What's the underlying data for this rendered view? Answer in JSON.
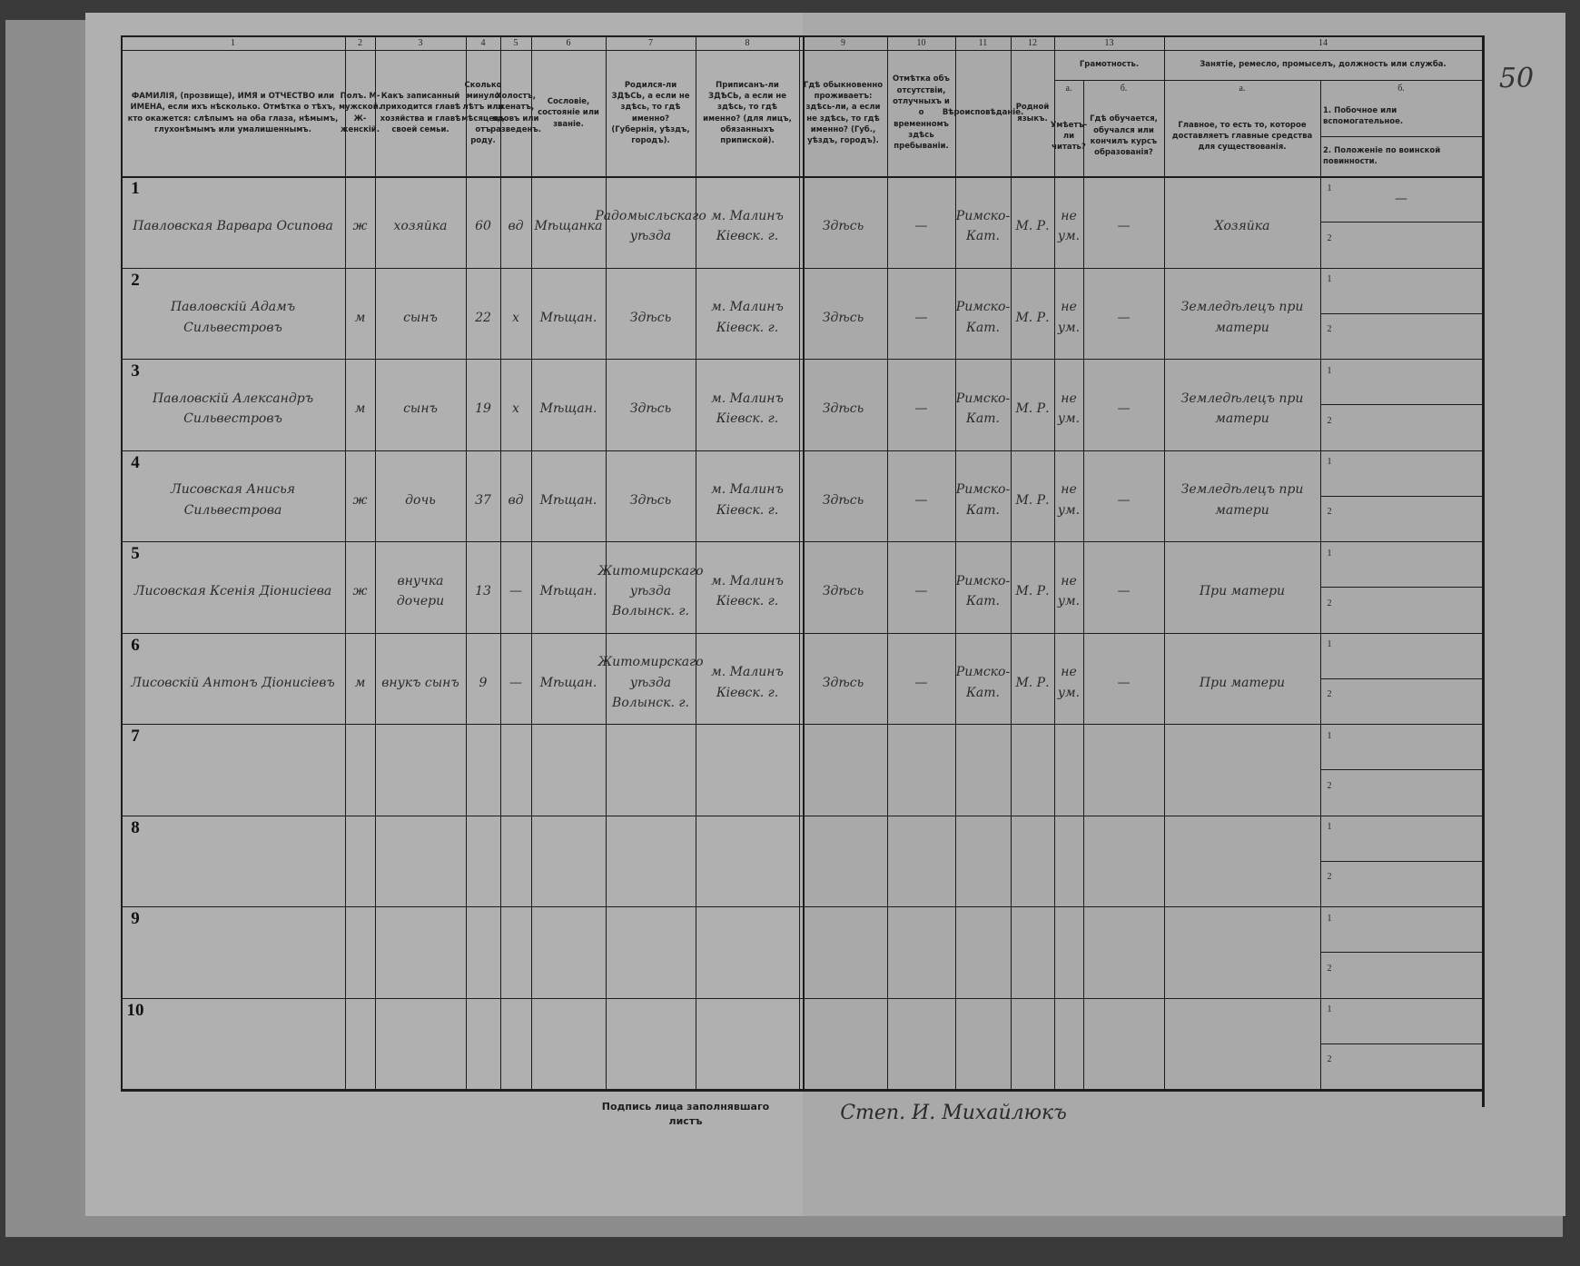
{
  "page_number": "50",
  "columns": [
    {
      "number": "1",
      "header": "ФАМИЛІЯ, (прозвище), ИМЯ и ОТЧЕСТВО или ИМЕНА, если ихъ нѣсколько. Отмѣтка о тѣхъ, кто окажется: слѣпымъ на оба глаза, нѣмымъ, глухонѣмымъ или умалишеннымъ."
    },
    {
      "number": "2",
      "header": "Полъ. М-мужской. Ж-женскій."
    },
    {
      "number": "3",
      "header": "Какъ записанный приходится главѣ хозяйства и главѣ своей семьи."
    },
    {
      "number": "4",
      "header": "Сколько минуло лѣтъ или мѣсяцевъ отъ роду."
    },
    {
      "number": "5",
      "header": "Холостъ, женатъ, вдовъ или разведенъ."
    },
    {
      "number": "6",
      "header": "Сословіе, состояніе или званіе."
    },
    {
      "number": "7",
      "header": "Родился-ли ЗДѢСЬ, а если не здѣсь, то гдѣ именно? (Губернія, уѣздъ, городъ)."
    },
    {
      "number": "8",
      "header": "Приписанъ-ли ЗДѢСЬ, а если не здѣсь, то гдѣ именно? (для лицъ, обязанныхъ припиской)."
    },
    {
      "number": "9",
      "header": "Гдѣ обыкновенно проживаетъ: здѣсь-ли, а если не здѣсь, то гдѣ именно? (Губ., уѣздъ, городъ)."
    },
    {
      "number": "10",
      "header": "Отмѣтка объ отсутствіи, отлучныхъ и о временномъ здѣсь пребываніи."
    },
    {
      "number": "11",
      "header": "Вѣроисповѣданіе."
    },
    {
      "number": "12",
      "header": "Родной языкъ."
    },
    {
      "number": "13",
      "header": "Грамотность.",
      "sub": [
        {
          "letter": "а.",
          "header": "Умѣетъ-ли читать?"
        },
        {
          "letter": "б.",
          "header": "Гдѣ обучается, обучался или кончилъ курсъ образованія?"
        }
      ]
    },
    {
      "number": "14",
      "header": "Занятіе, ремесло, промыселъ, должность или служба.",
      "sub": [
        {
          "letter": "а.",
          "header": "Главное, то есть то, которое доставляетъ главные средства для существованія."
        },
        {
          "letter": "б.",
          "header_lines": [
            "1. Побочное или вспомогательное.",
            "2. Положеніе по воинской повинности."
          ]
        }
      ]
    }
  ],
  "sub_line_labels": [
    "1",
    "2"
  ],
  "rows": [
    {
      "number": "1",
      "cells": [
        "Павловская Варвара Осипова",
        "ж",
        "хозяйка",
        "60",
        "вд",
        "Мѣщанка",
        "Радомысльскаго уѣзда",
        "м. Малинъ Кіевск. г.",
        "Здѣсь",
        "—",
        "Римско-Кат.",
        "М. Р.",
        "не ум.",
        "—",
        "Хозяйка",
        "—"
      ]
    },
    {
      "number": "2",
      "cells": [
        "Павловскій Адамъ Сильвестровъ",
        "м",
        "сынъ",
        "22",
        "х",
        "Мѣщан.",
        "Здѣсь",
        "м. Малинъ Кіевск. г.",
        "Здѣсь",
        "—",
        "Римско-Кат.",
        "М. Р.",
        "не ум.",
        "—",
        "Земледѣлецъ при матери",
        null
      ]
    },
    {
      "number": "3",
      "cells": [
        "Павловскій Александръ Сильвестровъ",
        "м",
        "сынъ",
        "19",
        "х",
        "Мѣщан.",
        "Здѣсь",
        "м. Малинъ Кіевск. г.",
        "Здѣсь",
        "—",
        "Римско-Кат.",
        "М. Р.",
        "не ум.",
        "—",
        "Земледѣлецъ при матери",
        null
      ]
    },
    {
      "number": "4",
      "cells": [
        "Лисовская Анисья Сильвестрова",
        "ж",
        "дочь",
        "37",
        "вд",
        "Мѣщан.",
        "Здѣсь",
        "м. Малинъ Кіевск. г.",
        "Здѣсь",
        "—",
        "Римско-Кат.",
        "М. Р.",
        "не ум.",
        "—",
        "Земледѣлецъ при матери",
        null
      ]
    },
    {
      "number": "5",
      "cells": [
        "Лисовская Ксенія Діонисіева",
        "ж",
        "внучка дочери",
        "13",
        "—",
        "Мѣщан.",
        "Житомирскаго уѣзда Волынск. г.",
        "м. Малинъ Кіевск. г.",
        "Здѣсь",
        "—",
        "Римско-Кат.",
        "М. Р.",
        "не ум.",
        "—",
        "При матери",
        null
      ]
    },
    {
      "number": "6",
      "cells": [
        "Лисовскій Антонъ Діонисіевъ",
        "м",
        "внукъ сынъ",
        "9",
        "—",
        "Мѣщан.",
        "Житомирскаго уѣзда Волынск. г.",
        "м. Малинъ Кіевск. г.",
        "Здѣсь",
        "—",
        "Римско-Кат.",
        "М. Р.",
        "не ум.",
        "—",
        "При матери",
        null
      ]
    },
    {
      "number": "7"
    },
    {
      "number": "8"
    },
    {
      "number": "9"
    },
    {
      "number": "10"
    }
  ],
  "signature_label": "Подпись лица заполнявшаго листъ",
  "signature": "Степ. И. Михайлюкъ"
}
